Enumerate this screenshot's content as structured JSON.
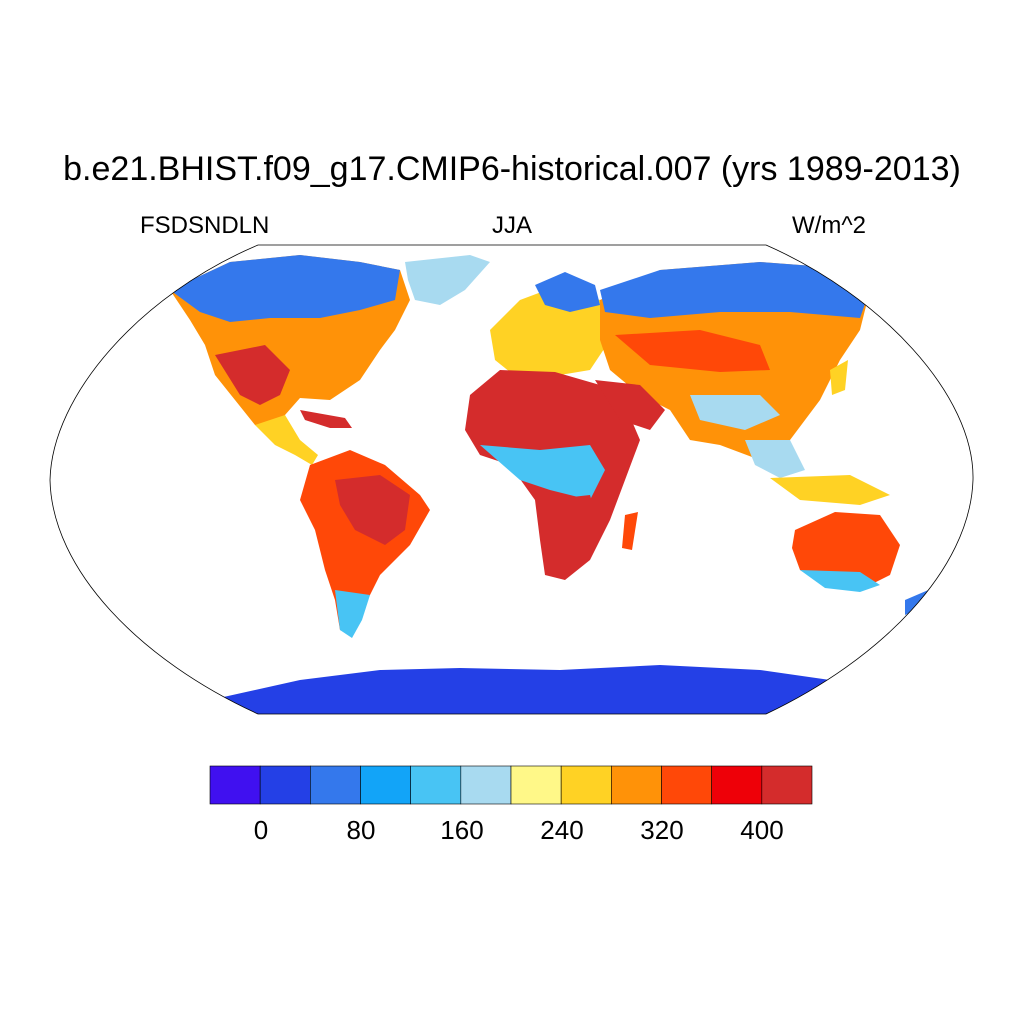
{
  "header": {
    "title": "b.e21.BHIST.f09_g17.CMIP6-historical.007 (yrs 1989-2013)",
    "left_label": "FSDSNDLN",
    "center_label": "JJA",
    "right_label": "W/m^2"
  },
  "colorbar": {
    "colors": [
      "#4010f0",
      "#2440e6",
      "#3478ec",
      "#12a4f8",
      "#48c4f4",
      "#a8daf0",
      "#fff888",
      "#ffd224",
      "#ff9208",
      "#ff4808",
      "#ee0008",
      "#d42c2c"
    ],
    "labels": [
      "0",
      "80",
      "160",
      "240",
      "320",
      "400"
    ]
  },
  "map": {
    "projection": "Robinson",
    "ocean_color": "#ffffff",
    "land_colors": {
      "polar": "#2440e6",
      "boreal": "#3478ec",
      "cool": "#48c4f4",
      "mild": "#a8daf0",
      "warm": "#ffd224",
      "hot": "#ff9208",
      "very_hot": "#ff4808",
      "extreme": "#d42c2c"
    }
  }
}
